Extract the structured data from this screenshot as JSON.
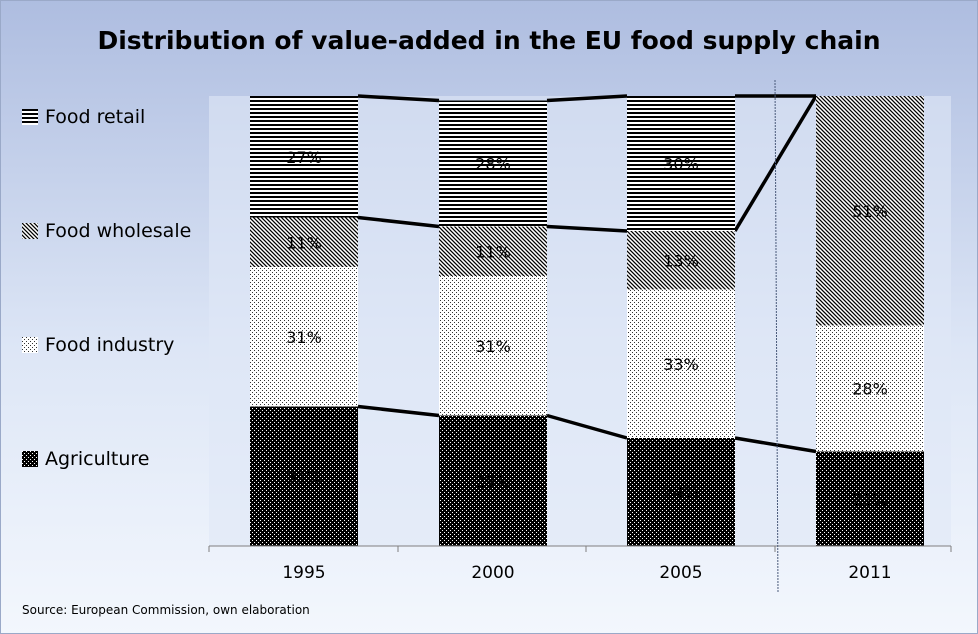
{
  "chart_data": {
    "type": "bar",
    "stacked": true,
    "title": "Distribution of value-added in the EU food supply chain",
    "categories": [
      "1995",
      "2000",
      "2005",
      "2011"
    ],
    "series": [
      {
        "name": "Agriculture",
        "values": [
          31,
          29,
          24,
          21
        ],
        "labels": [
          "31%",
          "29%",
          "24%",
          "21%"
        ],
        "pattern": "dense-dots"
      },
      {
        "name": "Food industry",
        "values": [
          31,
          31,
          33,
          28
        ],
        "labels": [
          "31%",
          "31%",
          "33%",
          "28%"
        ],
        "pattern": "light-dots"
      },
      {
        "name": "Food wholesale",
        "values": [
          11,
          11,
          13,
          51
        ],
        "labels": [
          "11%",
          "11%",
          "13%",
          "51%"
        ],
        "pattern": "diagonal"
      },
      {
        "name": "Food retail",
        "values": [
          27,
          28,
          30,
          0
        ],
        "labels": [
          "27%",
          "28%",
          "30%",
          ""
        ],
        "pattern": "horizontal"
      }
    ],
    "ylim": [
      0,
      100
    ],
    "grid": false,
    "legend": "left",
    "vertical_separator_between": [
      "2005",
      "2011"
    ],
    "series_lines": true
  },
  "source": "Source:  European Commission, own elaboration"
}
